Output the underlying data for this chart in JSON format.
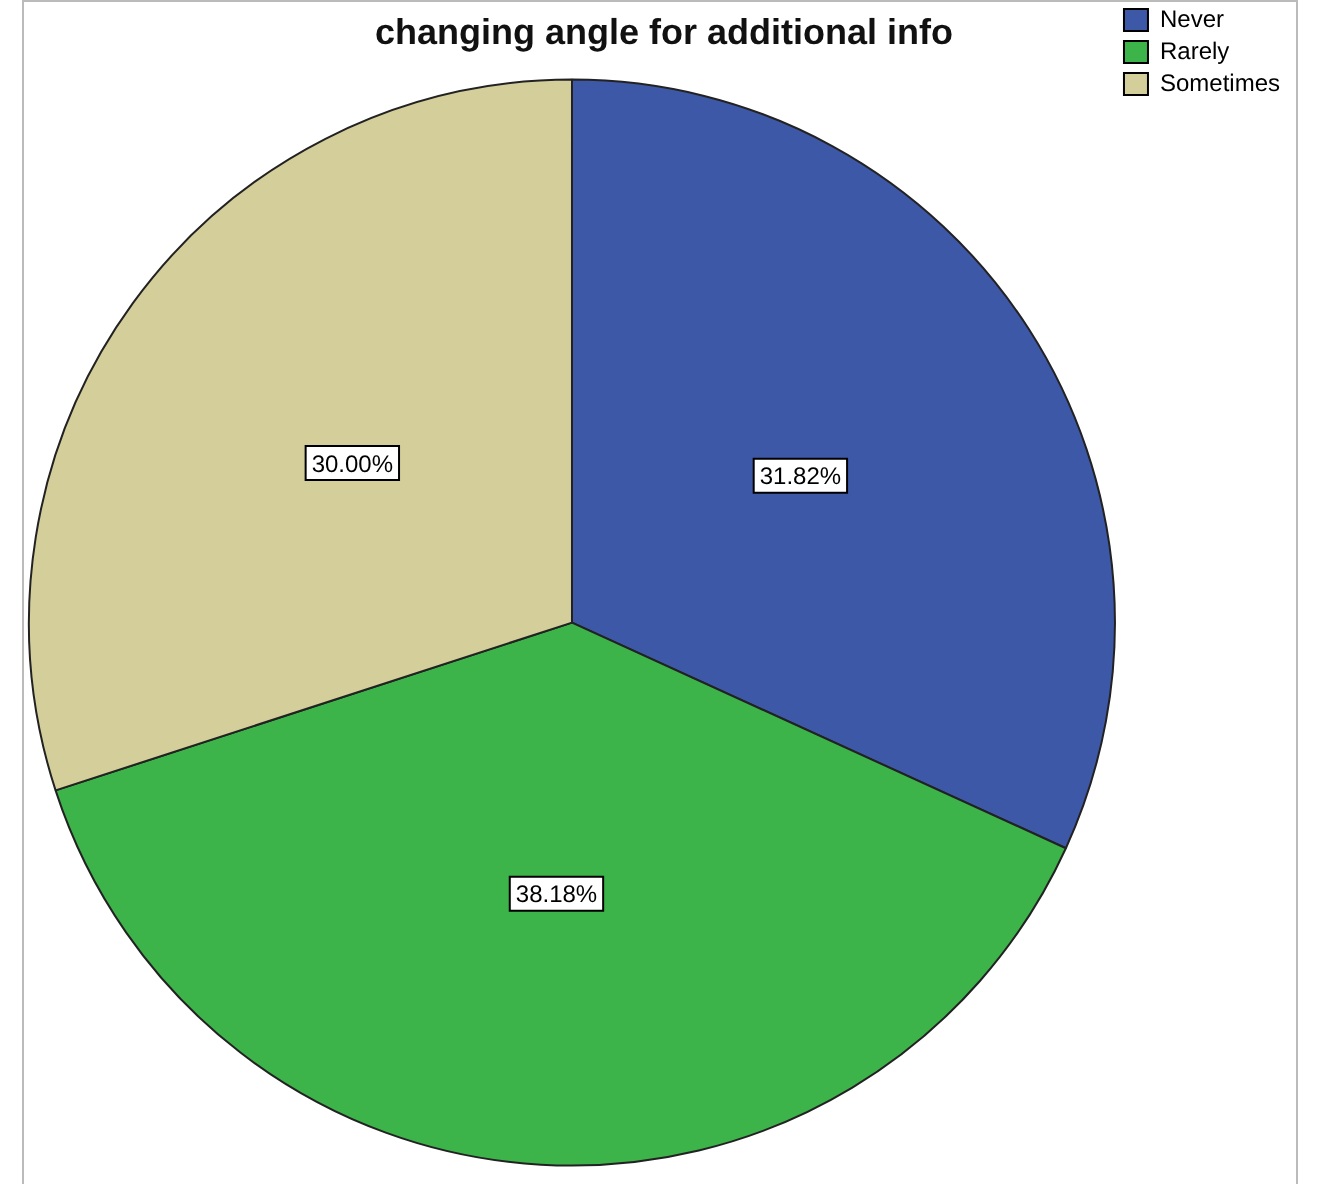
{
  "chart_data": {
    "type": "pie",
    "title": "changing angle for additional info",
    "categories": [
      "Never",
      "Rarely",
      "Sometimes"
    ],
    "values": [
      31.82,
      38.18,
      30.0
    ],
    "colors": [
      "#3e58a8",
      "#3cb44a",
      "#d3ce9a"
    ],
    "value_labels": [
      "31.82%",
      "38.18%",
      "30.00%"
    ],
    "legend": "top right"
  }
}
